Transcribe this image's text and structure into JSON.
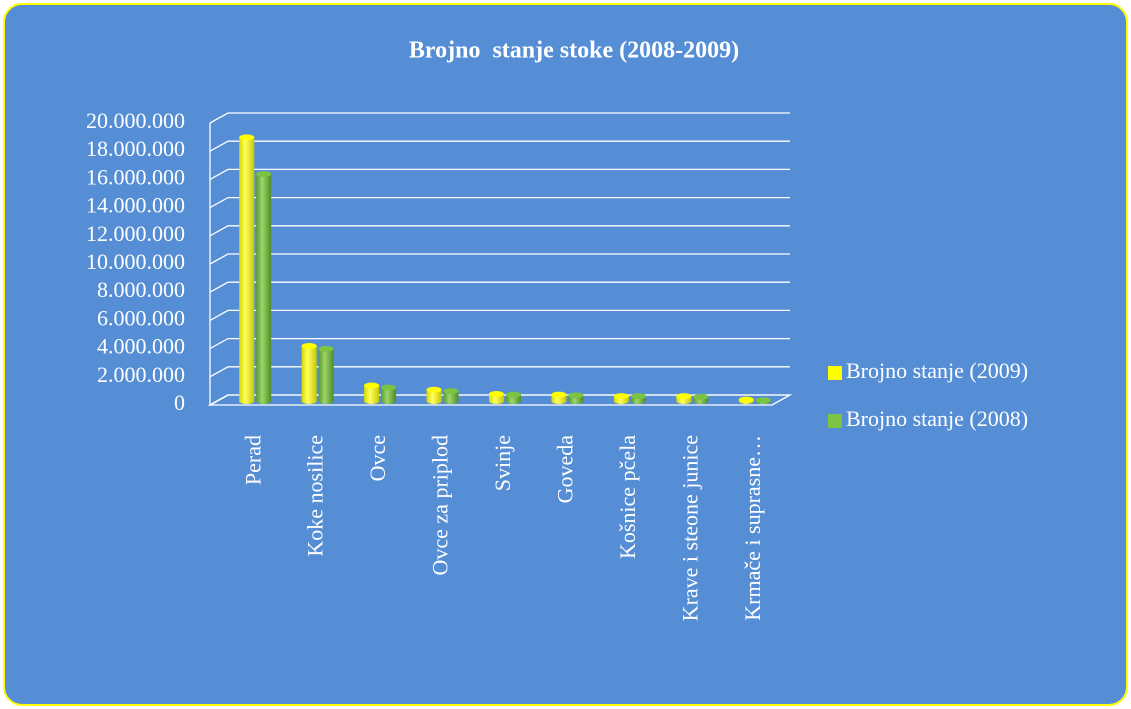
{
  "chart_data": {
    "type": "bar",
    "title": "Brojno  stanje stoke (2008-2009)",
    "categories": [
      "Perad",
      "Koke nosilice",
      "Ovce",
      "Ovce za priplod",
      "Svinje",
      "Goveda",
      "Košnice pčela",
      "Krave i steone junice",
      "Krmače i suprasne…"
    ],
    "series": [
      {
        "name": "Brojno stanje (2009)",
        "color": "#ffff00",
        "values": [
          18700000,
          3900000,
          1100000,
          800000,
          500000,
          450000,
          350000,
          350000,
          100000
        ]
      },
      {
        "name": "Brojno stanje (2008)",
        "color": "#7cc243",
        "values": [
          16100000,
          3700000,
          950000,
          700000,
          450000,
          400000,
          350000,
          300000,
          50000
        ]
      }
    ],
    "ylim": [
      0,
      20000000
    ],
    "yticks": [
      0,
      {
        "value": 2000000,
        "label": "2.000.000"
      },
      {
        "value": 4000000,
        "label": "4.000.000"
      },
      {
        "value": 6000000,
        "label": "6.000.000"
      },
      {
        "value": 8000000,
        "label": "8.000.000"
      },
      {
        "value": 10000000,
        "label": "10.000.000"
      },
      {
        "value": 12000000,
        "label": "12.000.000"
      },
      {
        "value": 14000000,
        "label": "14.000.000"
      },
      {
        "value": 16000000,
        "label": "16.000.000"
      },
      {
        "value": 18000000,
        "label": "18.000.000"
      },
      {
        "value": 20000000,
        "label": "20.000.000"
      }
    ],
    "grid": true,
    "legend": "right"
  }
}
